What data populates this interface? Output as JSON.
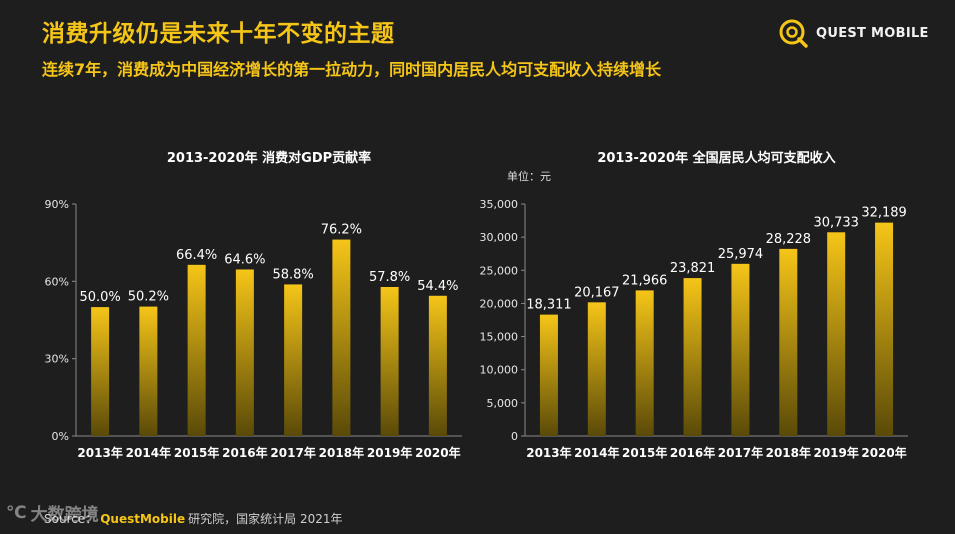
{
  "header": {
    "title": "消费升级仍是未来十年不变的主题",
    "subtitle": "连续7年，消费成为中国经济增长的第一拉动力，同时国内居民人均可支配收入持续增长"
  },
  "logo": {
    "text": "QUEST MOBILE"
  },
  "colors": {
    "accent": "#f5c518",
    "bar_top": "#f5c518",
    "bar_bottom": "#5a4a08",
    "background": "#1e1e1e"
  },
  "chart_data": [
    {
      "type": "bar",
      "title": "2013-2020年 消费对GDP贡献率",
      "categories": [
        "2013年",
        "2014年",
        "2015年",
        "2016年",
        "2017年",
        "2018年",
        "2019年",
        "2020年"
      ],
      "values": [
        50.0,
        50.2,
        66.4,
        64.6,
        58.8,
        76.2,
        57.8,
        54.4
      ],
      "value_labels": [
        "50.0%",
        "50.2%",
        "66.4%",
        "64.6%",
        "58.8%",
        "76.2%",
        "57.8%",
        "54.4%"
      ],
      "ylim": [
        0,
        90
      ],
      "yticks": [
        0,
        30,
        60,
        90
      ],
      "ytick_labels": [
        "0%",
        "30%",
        "60%",
        "90%"
      ],
      "unit": ""
    },
    {
      "type": "bar",
      "title": "2013-2020年 全国居民人均可支配收入",
      "categories": [
        "2013年",
        "2014年",
        "2015年",
        "2016年",
        "2017年",
        "2018年",
        "2019年",
        "2020年"
      ],
      "values": [
        18311,
        20167,
        21966,
        23821,
        25974,
        28228,
        30733,
        32189
      ],
      "value_labels": [
        "18,311",
        "20,167",
        "21,966",
        "23,821",
        "25,974",
        "28,228",
        "30,733",
        "32,189"
      ],
      "ylim": [
        0,
        35000
      ],
      "yticks": [
        0,
        5000,
        10000,
        15000,
        20000,
        25000,
        30000,
        35000
      ],
      "ytick_labels": [
        "0",
        "5,000",
        "10,000",
        "15,000",
        "20,000",
        "25,000",
        "30,000",
        "35,000"
      ],
      "unit": "单位：元"
    }
  ],
  "source": {
    "prefix": "Source：",
    "brand": "QuestMobile",
    "suffix": " 研究院，国家统计局 2021年"
  },
  "watermark": {
    "text": "大数跨境"
  }
}
